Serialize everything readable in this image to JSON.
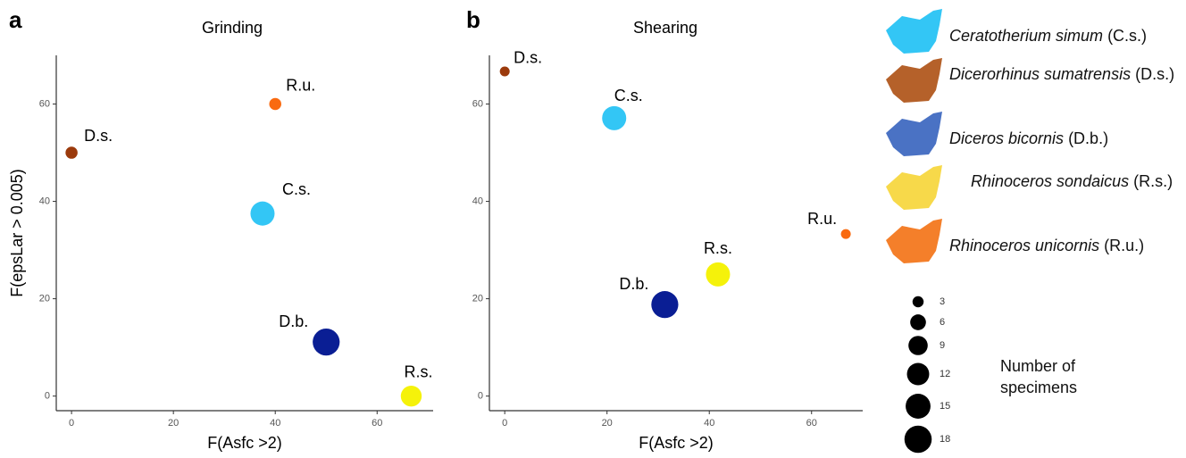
{
  "chart_data": [
    {
      "type": "scatter",
      "panel": "a",
      "title": "Grinding",
      "x_label": "F(Asfc >2)",
      "y_label": "F(epsLar > 0.005)",
      "labels": [
        "D.s.",
        "R.u.",
        "C.s.",
        "D.b.",
        "R.s."
      ],
      "x": [
        0,
        40,
        37.5,
        50,
        66.7
      ],
      "values": [
        50,
        60,
        37.5,
        11.1,
        0
      ],
      "sizes": [
        3,
        3,
        12,
        15,
        9
      ],
      "colors": [
        "#9b3a0c",
        "#f96a10",
        "#33c6f5",
        "#0a1e94",
        "#f5f20a"
      ],
      "xlim": [
        -3,
        71
      ],
      "ylim": [
        -3,
        70
      ],
      "xticks": [
        0,
        20,
        40,
        60
      ],
      "yticks": [
        0,
        20,
        40,
        60
      ]
    },
    {
      "type": "scatter",
      "panel": "b",
      "title": "Shearing",
      "x_label": "F(Asfc >2)",
      "labels": [
        "D.s.",
        "C.s.",
        "R.u.",
        "R.s.",
        "D.b."
      ],
      "x": [
        0,
        21.4,
        66.7,
        41.7,
        31.3
      ],
      "values": [
        66.7,
        57.1,
        33.3,
        25,
        18.8
      ],
      "sizes": [
        2,
        12,
        2,
        12,
        15
      ],
      "colors": [
        "#9b3a0c",
        "#33c6f5",
        "#f96a10",
        "#f5f20a",
        "#0a1e94"
      ],
      "xlim": [
        -3,
        70
      ],
      "ylim": [
        -3,
        70
      ],
      "xticks": [
        0,
        20,
        40,
        60
      ],
      "yticks": [
        0,
        20,
        40,
        60
      ]
    }
  ],
  "species_legend": [
    {
      "name": "Ceratotherium simum",
      "abbr": "(C.s.)",
      "color": "#33c6f5"
    },
    {
      "name": "Dicerorhinus sumatrensis",
      "abbr": "(D.s.)",
      "color": "#b5612a"
    },
    {
      "name": "Diceros bicornis",
      "abbr": "(D.b.)",
      "color": "#4a72c4"
    },
    {
      "name": "Rhinoceros sondaicus",
      "abbr": "(R.s.)",
      "color": "#f7d94a"
    },
    {
      "name": "Rhinoceros unicornis",
      "abbr": "(R.u.)",
      "color": "#f47f2a"
    }
  ],
  "size_legend": {
    "title": "Number of specimens",
    "sizes": [
      3,
      6,
      9,
      12,
      15,
      18
    ]
  }
}
